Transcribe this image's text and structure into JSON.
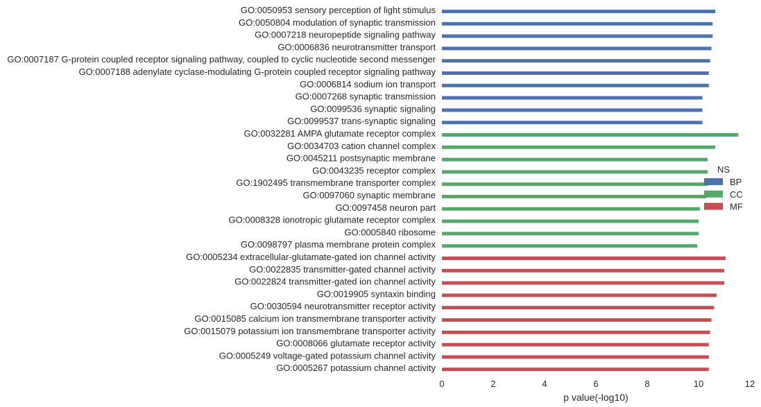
{
  "chart_data": {
    "type": "bar",
    "orientation": "horizontal",
    "xlabel": "p value(-log10)",
    "xlim": [
      0,
      12
    ],
    "xticks": [
      0,
      2,
      4,
      6,
      8,
      10,
      12
    ],
    "grid": false,
    "legend": {
      "title": "NS",
      "placement": "right",
      "entries": [
        {
          "name": "BP",
          "color": "#4c72b0"
        },
        {
          "name": "CC",
          "color": "#55a868"
        },
        {
          "name": "MF",
          "color": "#c44e52"
        }
      ]
    },
    "categories": [
      {
        "label": "GO:0050953 sensory perception of light stimulus",
        "value": 10.65,
        "group": "BP"
      },
      {
        "label": "GO:0050804 modulation of synaptic transmission",
        "value": 10.55,
        "group": "BP"
      },
      {
        "label": "GO:0007218 neuropeptide signaling pathway",
        "value": 10.55,
        "group": "BP"
      },
      {
        "label": "GO:0006836 neurotransmitter transport",
        "value": 10.5,
        "group": "BP"
      },
      {
        "label": "GO:0007187 G-protein coupled receptor signaling pathway, coupled to cyclic nucleotide second messenger",
        "value": 10.45,
        "group": "BP"
      },
      {
        "label": "GO:0007188 adenylate cyclase-modulating G-protein coupled receptor signaling pathway",
        "value": 10.4,
        "group": "BP"
      },
      {
        "label": "GO:0006814 sodium ion transport",
        "value": 10.4,
        "group": "BP"
      },
      {
        "label": "GO:0007268 synaptic transmission",
        "value": 10.15,
        "group": "BP"
      },
      {
        "label": "GO:0099536 synaptic signaling",
        "value": 10.15,
        "group": "BP"
      },
      {
        "label": "GO:0099537 trans-synaptic signaling",
        "value": 10.15,
        "group": "BP"
      },
      {
        "label": "GO:0032281 AMPA glutamate receptor complex",
        "value": 11.55,
        "group": "CC"
      },
      {
        "label": "GO:0034703 cation channel complex",
        "value": 10.65,
        "group": "CC"
      },
      {
        "label": "GO:0045211 postsynaptic membrane",
        "value": 10.35,
        "group": "CC"
      },
      {
        "label": "GO:0043235 receptor complex",
        "value": 10.35,
        "group": "CC"
      },
      {
        "label": "GO:1902495 transmembrane transporter complex",
        "value": 10.35,
        "group": "CC"
      },
      {
        "label": "GO:0097060 synaptic membrane",
        "value": 10.3,
        "group": "CC"
      },
      {
        "label": "GO:0097458 neuron part",
        "value": 10.05,
        "group": "CC"
      },
      {
        "label": "GO:0008328 ionotropic glutamate receptor complex",
        "value": 10.0,
        "group": "CC"
      },
      {
        "label": "GO:0005840 ribosome",
        "value": 10.0,
        "group": "CC"
      },
      {
        "label": "GO:0098797 plasma membrane protein complex",
        "value": 9.95,
        "group": "CC"
      },
      {
        "label": "GO:0005234 extracellular-glutamate-gated ion channel activity",
        "value": 11.05,
        "group": "MF"
      },
      {
        "label": "GO:0022835 transmitter-gated channel activity",
        "value": 11.0,
        "group": "MF"
      },
      {
        "label": "GO:0022824 transmitter-gated ion channel activity",
        "value": 11.0,
        "group": "MF"
      },
      {
        "label": "GO:0019905 syntaxin binding",
        "value": 10.7,
        "group": "MF"
      },
      {
        "label": "GO:0030594 neurotransmitter receptor activity",
        "value": 10.6,
        "group": "MF"
      },
      {
        "label": "GO:0015085 calcium ion transmembrane transporter activity",
        "value": 10.5,
        "group": "MF"
      },
      {
        "label": "GO:0015079 potassium ion transmembrane transporter activity",
        "value": 10.45,
        "group": "MF"
      },
      {
        "label": "GO:0008066 glutamate receptor activity",
        "value": 10.4,
        "group": "MF"
      },
      {
        "label": "GO:0005249 voltage-gated potassium channel activity",
        "value": 10.4,
        "group": "MF"
      },
      {
        "label": "GO:0005267 potassium channel activity",
        "value": 10.4,
        "group": "MF"
      }
    ]
  }
}
